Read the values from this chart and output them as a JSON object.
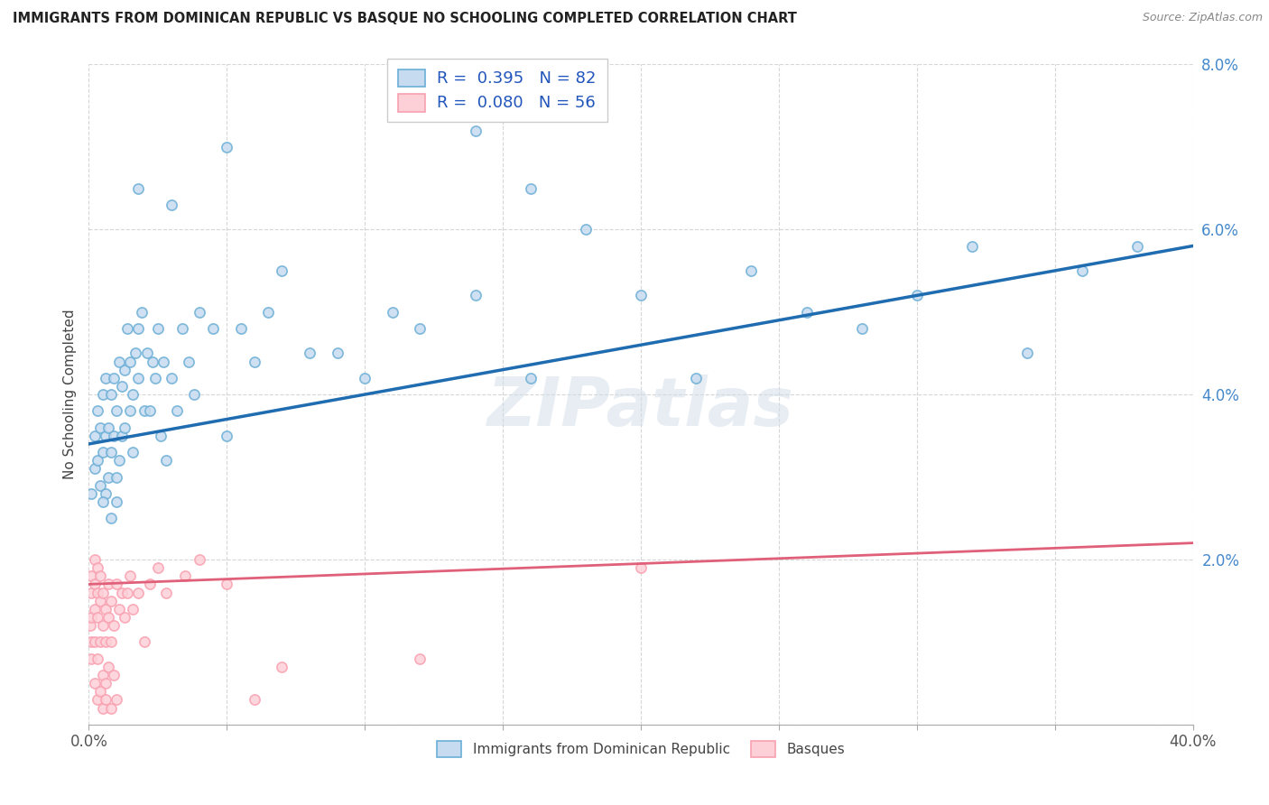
{
  "title": "IMMIGRANTS FROM DOMINICAN REPUBLIC VS BASQUE NO SCHOOLING COMPLETED CORRELATION CHART",
  "source": "Source: ZipAtlas.com",
  "ylabel": "No Schooling Completed",
  "xlim": [
    0.0,
    0.4
  ],
  "ylim": [
    0.0,
    0.08
  ],
  "blue_edge": "#6baed6",
  "blue_face": "#c6dbef",
  "pink_edge": "#f9a0b0",
  "pink_face": "#fdd0d8",
  "trend_blue": "#1f6cb0",
  "trend_pink": "#e0607a",
  "legend_R1": "R =  0.395",
  "legend_N1": "N = 82",
  "legend_R2": "R =  0.080",
  "legend_N2": "N = 56",
  "legend_label1": "Immigrants from Dominican Republic",
  "legend_label2": "Basques",
  "watermark": "ZIPatlas",
  "blue_trend_x0": 0.0,
  "blue_trend_y0": 0.034,
  "blue_trend_x1": 0.4,
  "blue_trend_y1": 0.058,
  "pink_trend_x0": 0.0,
  "pink_trend_y0": 0.017,
  "pink_trend_x1": 0.4,
  "pink_trend_y1": 0.022,
  "blue_x": [
    0.001,
    0.002,
    0.002,
    0.003,
    0.003,
    0.004,
    0.004,
    0.005,
    0.005,
    0.006,
    0.006,
    0.006,
    0.007,
    0.007,
    0.008,
    0.008,
    0.008,
    0.009,
    0.009,
    0.01,
    0.01,
    0.011,
    0.011,
    0.012,
    0.012,
    0.013,
    0.013,
    0.014,
    0.015,
    0.015,
    0.016,
    0.016,
    0.017,
    0.018,
    0.018,
    0.019,
    0.02,
    0.021,
    0.022,
    0.023,
    0.024,
    0.025,
    0.026,
    0.027,
    0.028,
    0.03,
    0.032,
    0.034,
    0.036,
    0.038,
    0.04,
    0.045,
    0.05,
    0.055,
    0.06,
    0.065,
    0.07,
    0.08,
    0.09,
    0.1,
    0.11,
    0.12,
    0.14,
    0.16,
    0.18,
    0.2,
    0.22,
    0.24,
    0.26,
    0.28,
    0.3,
    0.32,
    0.34,
    0.36,
    0.38,
    0.018,
    0.03,
    0.05,
    0.14,
    0.16,
    0.005,
    0.01
  ],
  "blue_y": [
    0.028,
    0.031,
    0.035,
    0.032,
    0.038,
    0.029,
    0.036,
    0.033,
    0.04,
    0.028,
    0.035,
    0.042,
    0.03,
    0.036,
    0.025,
    0.033,
    0.04,
    0.035,
    0.042,
    0.03,
    0.038,
    0.032,
    0.044,
    0.035,
    0.041,
    0.036,
    0.043,
    0.048,
    0.038,
    0.044,
    0.033,
    0.04,
    0.045,
    0.042,
    0.048,
    0.05,
    0.038,
    0.045,
    0.038,
    0.044,
    0.042,
    0.048,
    0.035,
    0.044,
    0.032,
    0.042,
    0.038,
    0.048,
    0.044,
    0.04,
    0.05,
    0.048,
    0.035,
    0.048,
    0.044,
    0.05,
    0.055,
    0.045,
    0.045,
    0.042,
    0.05,
    0.048,
    0.052,
    0.042,
    0.06,
    0.052,
    0.042,
    0.055,
    0.05,
    0.048,
    0.052,
    0.058,
    0.045,
    0.055,
    0.058,
    0.065,
    0.063,
    0.07,
    0.072,
    0.065,
    0.027,
    0.027
  ],
  "pink_x": [
    0.0005,
    0.001,
    0.001,
    0.001,
    0.001,
    0.001,
    0.002,
    0.002,
    0.002,
    0.002,
    0.002,
    0.003,
    0.003,
    0.003,
    0.003,
    0.004,
    0.004,
    0.004,
    0.005,
    0.005,
    0.005,
    0.006,
    0.006,
    0.006,
    0.007,
    0.007,
    0.007,
    0.008,
    0.008,
    0.009,
    0.009,
    0.01,
    0.011,
    0.012,
    0.013,
    0.014,
    0.015,
    0.016,
    0.018,
    0.02,
    0.022,
    0.025,
    0.028,
    0.035,
    0.04,
    0.05,
    0.06,
    0.07,
    0.12,
    0.2,
    0.003,
    0.004,
    0.005,
    0.006,
    0.008,
    0.01
  ],
  "pink_y": [
    0.012,
    0.008,
    0.01,
    0.013,
    0.016,
    0.018,
    0.005,
    0.01,
    0.014,
    0.017,
    0.02,
    0.008,
    0.013,
    0.016,
    0.019,
    0.01,
    0.015,
    0.018,
    0.006,
    0.012,
    0.016,
    0.005,
    0.01,
    0.014,
    0.007,
    0.013,
    0.017,
    0.01,
    0.015,
    0.006,
    0.012,
    0.017,
    0.014,
    0.016,
    0.013,
    0.016,
    0.018,
    0.014,
    0.016,
    0.01,
    0.017,
    0.019,
    0.016,
    0.018,
    0.02,
    0.017,
    0.003,
    0.007,
    0.008,
    0.019,
    0.003,
    0.004,
    0.002,
    0.003,
    0.002,
    0.003
  ]
}
